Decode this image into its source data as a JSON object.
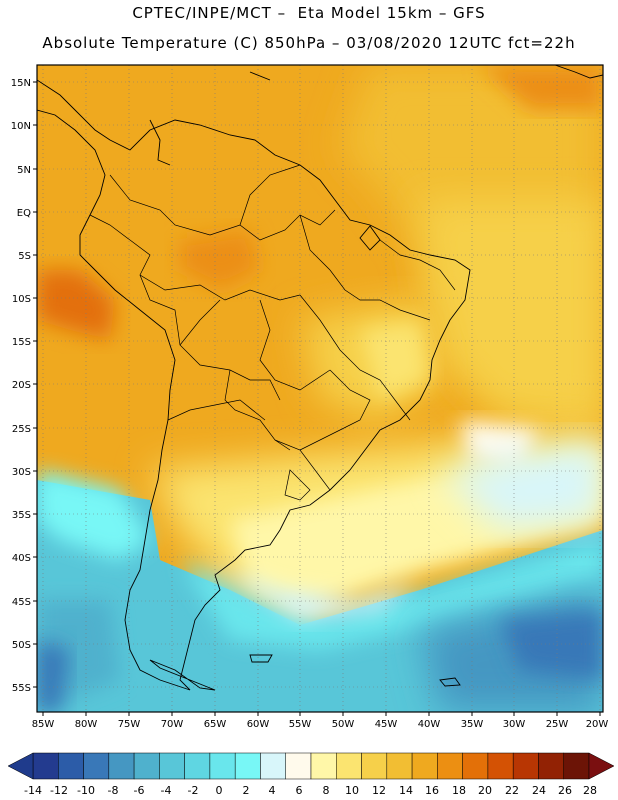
{
  "title_line1": "CPTEC/INPE/MCT –  Eta Model 15km – GFS",
  "title_line2": "Absolute Temperature (C) 850hPa – 03/08/2020 12UTC fct=22h",
  "map": {
    "lat_labels": [
      "15N",
      "10N",
      "5N",
      "EQ",
      "5S",
      "10S",
      "15S",
      "20S",
      "25S",
      "30S",
      "35S",
      "40S",
      "45S",
      "50S",
      "55S"
    ],
    "lon_labels": [
      "85W",
      "80W",
      "75W",
      "70W",
      "65W",
      "60W",
      "55W",
      "50W",
      "45W",
      "40W",
      "35W",
      "30W",
      "25W",
      "20W"
    ],
    "lat_range": [
      -58,
      16
    ],
    "lon_range": [
      -85,
      -20
    ],
    "grid": true,
    "gridline_style": "dotted"
  },
  "colorbar": {
    "ticks": [
      "-14",
      "-12",
      "-10",
      "-8",
      "-6",
      "-4",
      "-2",
      "0",
      "2",
      "4",
      "6",
      "8",
      "10",
      "12",
      "14",
      "16",
      "18",
      "20",
      "22",
      "24",
      "26",
      "28"
    ],
    "colors": [
      "#233b8f",
      "#2c5ca8",
      "#3978b8",
      "#4597c2",
      "#4fb1cd",
      "#58c6d8",
      "#5fd6e2",
      "#69e6ec",
      "#78f7f6",
      "#d8f6fa",
      "#fffaec",
      "#fff7a8",
      "#fbe470",
      "#f6d04a",
      "#f2be33",
      "#efa91f",
      "#ec8f12",
      "#e37008",
      "#d45204",
      "#b83603",
      "#922204",
      "#6c1406"
    ],
    "underflow_color": "#1f3b8c",
    "overflow_color": "#7a0f10"
  }
}
